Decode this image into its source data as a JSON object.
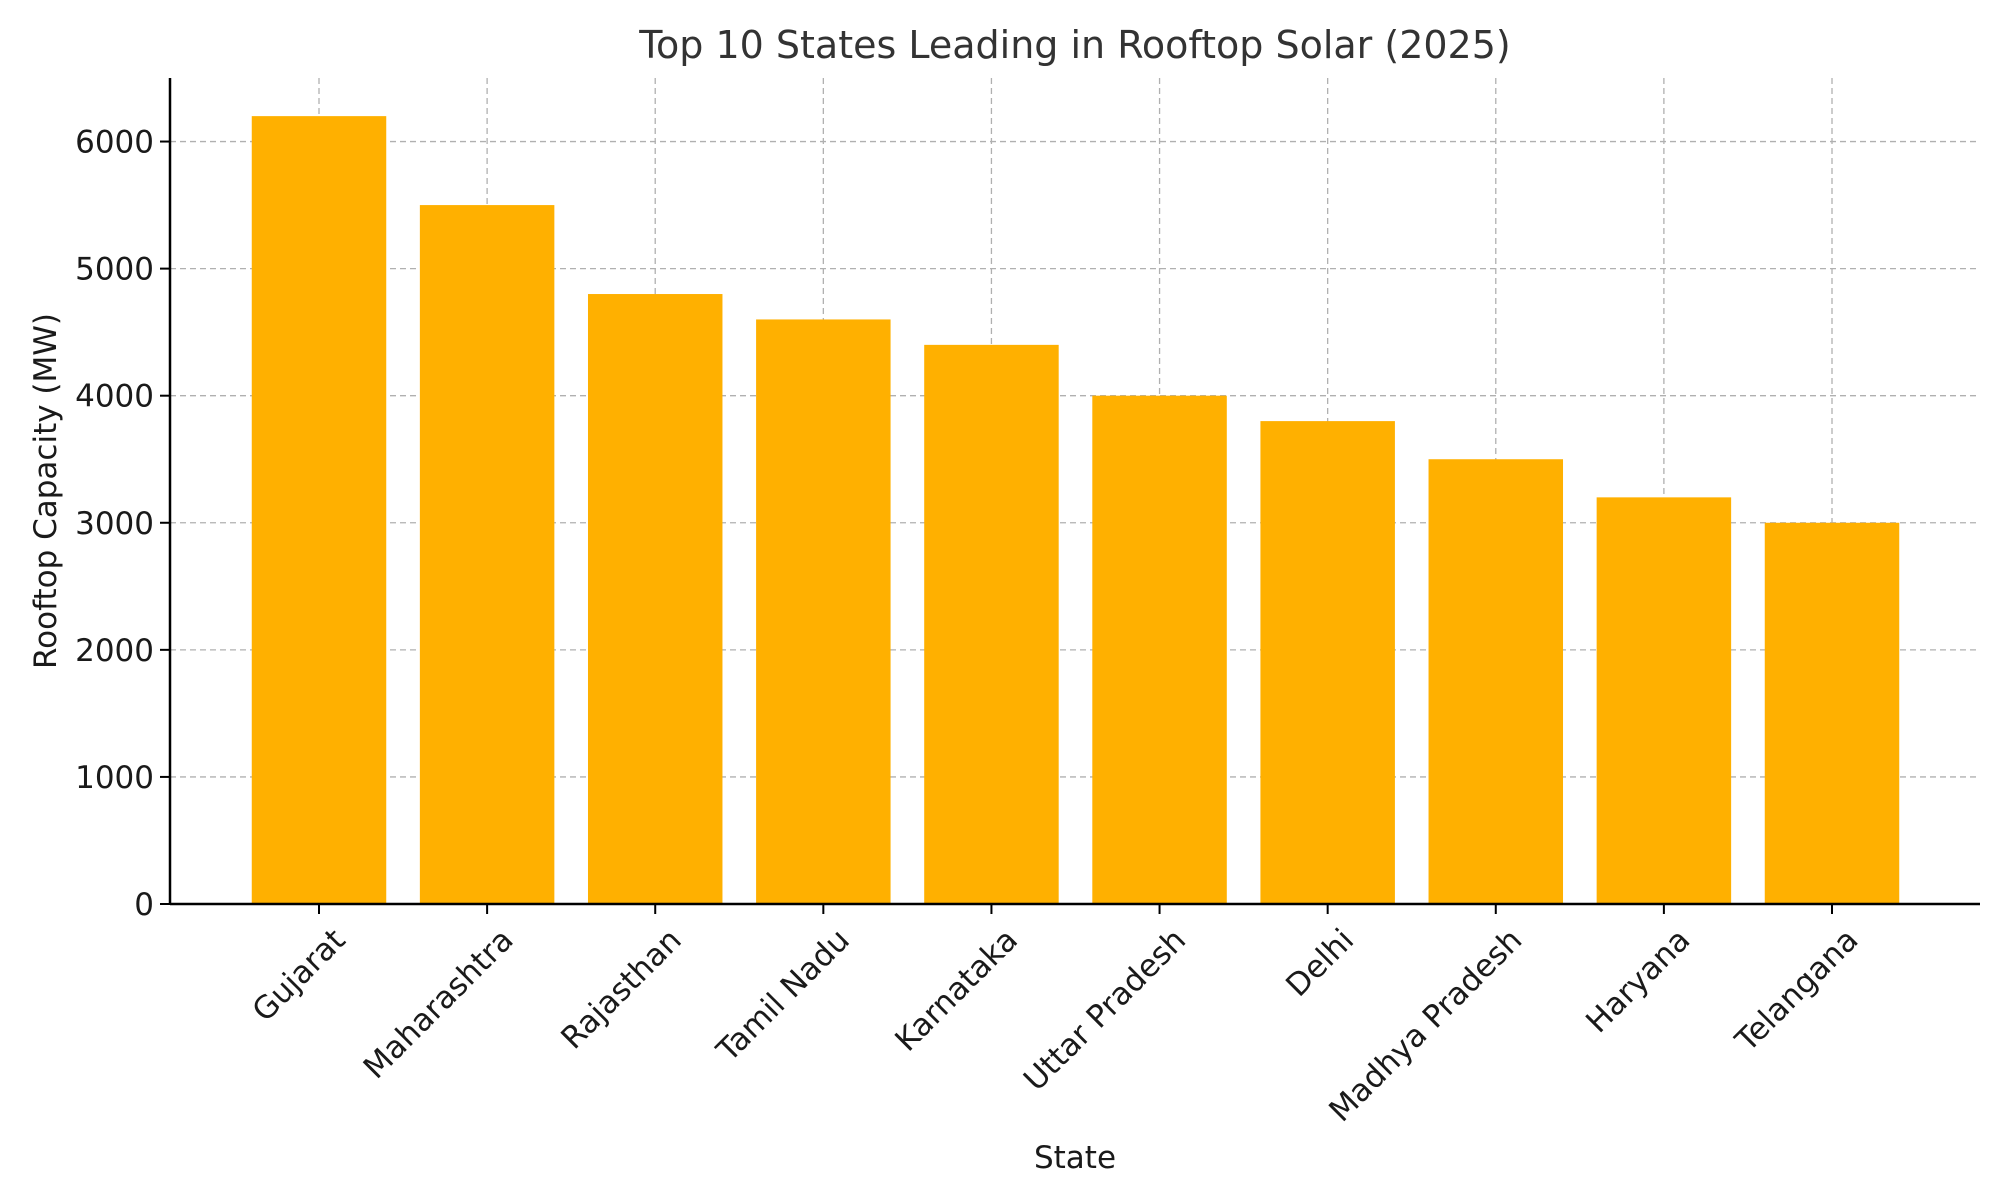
{
  "chart_data": {
    "type": "bar",
    "title": "Top 10 States Leading in Rooftop Solar (2025)",
    "xlabel": "State",
    "ylabel": "Rooftop Capacity (MW)",
    "categories": [
      "Gujarat",
      "Maharashtra",
      "Rajasthan",
      "Tamil Nadu",
      "Karnataka",
      "Uttar Pradesh",
      "Delhi",
      "Madhya Pradesh",
      "Haryana",
      "Telangana"
    ],
    "values": [
      6200,
      5500,
      4800,
      4600,
      4400,
      4000,
      3800,
      3500,
      3200,
      3000
    ],
    "ylim": [
      0,
      6500
    ],
    "yticks": [
      0,
      1000,
      2000,
      3000,
      4000,
      5000,
      6000
    ],
    "grid": true,
    "bar_color": "#FFB000",
    "x_tick_rotation_deg": 45
  }
}
